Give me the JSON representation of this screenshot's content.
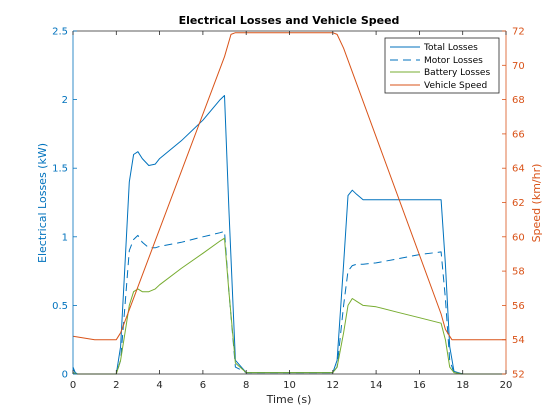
{
  "chart_data": {
    "type": "line",
    "title": "Electrical Losses and Vehicle Speed",
    "xlabel": "Time (s)",
    "ylabel_left": "Electrical Losses (kW)",
    "ylabel_right": "Speed (km/hr)",
    "xlim": [
      0,
      20
    ],
    "ylim_left": [
      0,
      2.5
    ],
    "ylim_right": [
      52,
      72
    ],
    "x_ticks": [
      "0",
      "2",
      "4",
      "6",
      "8",
      "10",
      "12",
      "14",
      "16",
      "18",
      "20"
    ],
    "y_left_ticks": [
      "0",
      "0.5",
      "1",
      "1.5",
      "2",
      "2.5"
    ],
    "y_right_ticks": [
      "52",
      "54",
      "56",
      "58",
      "60",
      "62",
      "64",
      "66",
      "68",
      "70",
      "72"
    ],
    "grid": false,
    "legend_position": "top-right",
    "colors": {
      "losses_axis": "#0072BD",
      "speed_axis": "#D95319"
    },
    "series": [
      {
        "name": "Total Losses",
        "axis": "left",
        "color": "#0072BD",
        "dash": "solid",
        "x": [
          0,
          0.1,
          0.2,
          2.0,
          2.2,
          2.4,
          2.6,
          2.8,
          3.0,
          3.2,
          3.5,
          3.8,
          4.0,
          5.0,
          6.0,
          6.8,
          7.0,
          7.2,
          7.5,
          8.0,
          10.0,
          12.0,
          12.2,
          12.5,
          12.7,
          12.9,
          13.1,
          13.4,
          14.0,
          15.0,
          16.0,
          17.0,
          17.2,
          17.4,
          17.6,
          18.0,
          20.0
        ],
        "y": [
          0.05,
          0.01,
          0.0,
          0.0,
          0.2,
          0.8,
          1.4,
          1.6,
          1.62,
          1.57,
          1.52,
          1.53,
          1.57,
          1.7,
          1.85,
          2.0,
          2.03,
          1.2,
          0.1,
          0.01,
          0.01,
          0.01,
          0.1,
          0.8,
          1.3,
          1.34,
          1.31,
          1.27,
          1.27,
          1.27,
          1.27,
          1.27,
          0.8,
          0.2,
          0.02,
          0.0,
          0.0
        ]
      },
      {
        "name": "Motor Losses",
        "axis": "left",
        "color": "#0072BD",
        "dash": "dashed",
        "x": [
          0,
          0.1,
          0.2,
          2.0,
          2.2,
          2.4,
          2.6,
          2.8,
          3.0,
          3.2,
          3.5,
          3.8,
          4.0,
          5.0,
          6.0,
          6.8,
          7.0,
          7.2,
          7.5,
          8.0,
          10.0,
          12.0,
          12.2,
          12.5,
          12.7,
          12.9,
          13.1,
          13.4,
          14.0,
          15.0,
          16.0,
          17.0,
          17.2,
          17.4,
          17.6,
          18.0,
          20.0
        ],
        "y": [
          0.04,
          0.01,
          0.0,
          0.0,
          0.1,
          0.5,
          0.9,
          0.98,
          1.01,
          0.96,
          0.92,
          0.92,
          0.93,
          0.96,
          1.0,
          1.03,
          1.04,
          0.6,
          0.05,
          0.01,
          0.01,
          0.01,
          0.05,
          0.5,
          0.75,
          0.79,
          0.8,
          0.8,
          0.81,
          0.84,
          0.87,
          0.89,
          0.55,
          0.1,
          0.01,
          0.0,
          0.0
        ]
      },
      {
        "name": "Battery Losses",
        "axis": "left",
        "color": "#77AC30",
        "dash": "solid",
        "x": [
          0,
          0.1,
          0.2,
          2.0,
          2.2,
          2.4,
          2.6,
          2.8,
          3.0,
          3.2,
          3.5,
          3.8,
          4.0,
          5.0,
          6.0,
          6.8,
          7.0,
          7.2,
          7.5,
          8.0,
          10.0,
          12.0,
          12.2,
          12.5,
          12.7,
          12.9,
          13.1,
          13.4,
          14.0,
          15.0,
          16.0,
          17.0,
          17.2,
          17.4,
          17.6,
          18.0,
          20.0
        ],
        "y": [
          0.01,
          0.005,
          0.0,
          0.0,
          0.1,
          0.3,
          0.5,
          0.6,
          0.62,
          0.6,
          0.6,
          0.62,
          0.65,
          0.77,
          0.88,
          0.97,
          0.99,
          0.6,
          0.08,
          0.01,
          0.01,
          0.01,
          0.05,
          0.3,
          0.5,
          0.55,
          0.53,
          0.5,
          0.49,
          0.45,
          0.41,
          0.37,
          0.25,
          0.05,
          0.01,
          0.0,
          0.0
        ]
      },
      {
        "name": "Vehicle Speed",
        "axis": "right",
        "color": "#D95319",
        "dash": "solid",
        "x": [
          0,
          1.0,
          2.0,
          2.2,
          7.0,
          7.3,
          7.5,
          12.0,
          12.2,
          12.5,
          17.0,
          17.2,
          17.5,
          18.0,
          20.0
        ],
        "y": [
          54.2,
          54.0,
          54.0,
          54.4,
          70.5,
          71.8,
          71.9,
          71.9,
          71.8,
          71.0,
          55.5,
          54.6,
          54.0,
          54.0,
          54.0
        ]
      }
    ]
  }
}
